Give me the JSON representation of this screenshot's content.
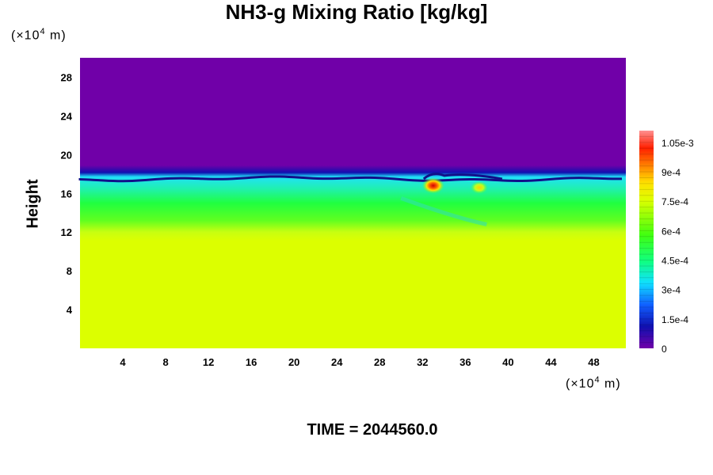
{
  "chart_data": {
    "type": "heatmap",
    "title": "NH3-g Mixing Ratio [kg/kg]",
    "ylabel": "Height",
    "y_unit_label": "(×10",
    "x_unit_label": "(×10",
    "unit_exponent": "4",
    "unit_suffix": " m)",
    "footer": "TIME = 2044560.0",
    "xlim": [
      0,
      51
    ],
    "ylim": [
      0,
      30
    ],
    "x_ticks": [
      4,
      8,
      12,
      16,
      20,
      24,
      28,
      32,
      36,
      40,
      44,
      48
    ],
    "y_ticks": [
      4,
      8,
      12,
      16,
      20,
      24,
      28
    ],
    "colorbar": {
      "range": [
        0,
        0.00111
      ],
      "tick_values": [
        0,
        0.00015,
        0.0003,
        0.00045,
        0.0006,
        0.00075,
        0.0009,
        0.00105
      ],
      "tick_labels": [
        "0",
        "1.5e-4",
        "3e-4",
        "4.5e-4",
        "6e-4",
        "7.5e-4",
        "9e-4",
        "1.05e-3"
      ]
    },
    "regions": [
      {
        "name": "upper layer",
        "y_range": [
          17.5,
          30
        ],
        "value": 0
      },
      {
        "name": "lower layer",
        "y_range": [
          0,
          11.5
        ],
        "value": 0.00076
      },
      {
        "name": "transition layer",
        "y_range": [
          11.5,
          17.5
        ],
        "value_range": [
          0.0002,
          0.0006
        ]
      },
      {
        "name": "local maximum",
        "x": 33,
        "y": 16.8,
        "value": 0.00103
      }
    ]
  }
}
